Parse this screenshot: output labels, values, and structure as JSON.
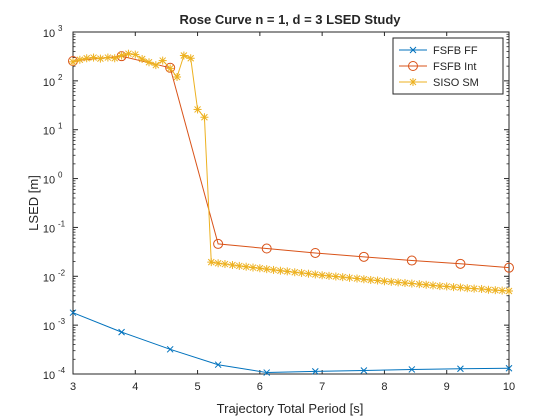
{
  "chart_data": {
    "type": "line",
    "title": "Rose Curve n = 1, d = 3 LSED Study",
    "xlabel": "Trajectory Total Period [s]",
    "ylabel": "LSED [m]",
    "xlim": [
      3,
      10
    ],
    "ylim": [
      0.0001,
      1000
    ],
    "yscale": "log",
    "xticks": [
      3,
      4,
      5,
      6,
      7,
      8,
      9,
      10
    ],
    "xtick_labels": [
      "3",
      "4",
      "5",
      "6",
      "7",
      "8",
      "9",
      "10"
    ],
    "yticks": [
      0.0001,
      0.001,
      0.01,
      0.1,
      1,
      10,
      100,
      1000
    ],
    "ytick_exponents": [
      "-4",
      "-3",
      "-2",
      "-1",
      "0",
      "1",
      "2",
      "3"
    ],
    "ytick_base": "10",
    "grid": false,
    "legend_position": "top-right",
    "series": [
      {
        "name": "FSFB FF",
        "color": "#0072BD",
        "marker": "x",
        "x": [
          3.0,
          3.78,
          4.56,
          5.33,
          6.11,
          6.89,
          7.67,
          8.44,
          9.22,
          10.0
        ],
        "y": [
          0.0018,
          0.00072,
          0.00032,
          0.000155,
          0.000107,
          0.000113,
          0.000118,
          0.000124,
          0.000128,
          0.000131
        ]
      },
      {
        "name": "FSFB Int",
        "color": "#D95319",
        "marker": "o",
        "x": [
          3.0,
          3.78,
          4.56,
          5.33,
          6.11,
          6.89,
          7.67,
          8.44,
          9.22,
          10.0
        ],
        "y": [
          255,
          320,
          185,
          0.046,
          0.037,
          0.03,
          0.025,
          0.021,
          0.018,
          0.015
        ]
      },
      {
        "name": "SISO SM",
        "color": "#EDB120",
        "marker": "*",
        "x": [
          3.0,
          3.11,
          3.22,
          3.33,
          3.44,
          3.56,
          3.67,
          3.78,
          3.89,
          4.0,
          4.11,
          4.22,
          4.33,
          4.44,
          4.56,
          4.67,
          4.78,
          4.89,
          5.0,
          5.11,
          5.22,
          5.33,
          5.44,
          5.56,
          5.67,
          5.78,
          5.89,
          6.0,
          6.11,
          6.22,
          6.33,
          6.44,
          6.56,
          6.67,
          6.78,
          6.89,
          7.0,
          7.11,
          7.22,
          7.33,
          7.44,
          7.56,
          7.67,
          7.78,
          7.89,
          8.0,
          8.11,
          8.22,
          8.33,
          8.44,
          8.56,
          8.67,
          8.78,
          8.89,
          9.0,
          9.11,
          9.22,
          9.33,
          9.44,
          9.56,
          9.67,
          9.78,
          9.89,
          10.0
        ],
        "y": [
          245,
          270,
          290,
          300,
          285,
          300,
          290,
          330,
          360,
          345,
          280,
          240,
          210,
          260,
          180,
          120,
          330,
          290,
          26,
          18,
          0.0195,
          0.0185,
          0.0178,
          0.017,
          0.0163,
          0.0157,
          0.0151,
          0.0146,
          0.014,
          0.0135,
          0.013,
          0.0126,
          0.0121,
          0.0117,
          0.0113,
          0.0109,
          0.0105,
          0.0102,
          0.0099,
          0.0096,
          0.0093,
          0.009,
          0.0087,
          0.0084,
          0.0082,
          0.0079,
          0.0077,
          0.0075,
          0.0073,
          0.0071,
          0.0069,
          0.0067,
          0.0065,
          0.0063,
          0.0062,
          0.006,
          0.0059,
          0.0057,
          0.0056,
          0.0055,
          0.0053,
          0.0052,
          0.0051,
          0.005
        ]
      }
    ]
  }
}
